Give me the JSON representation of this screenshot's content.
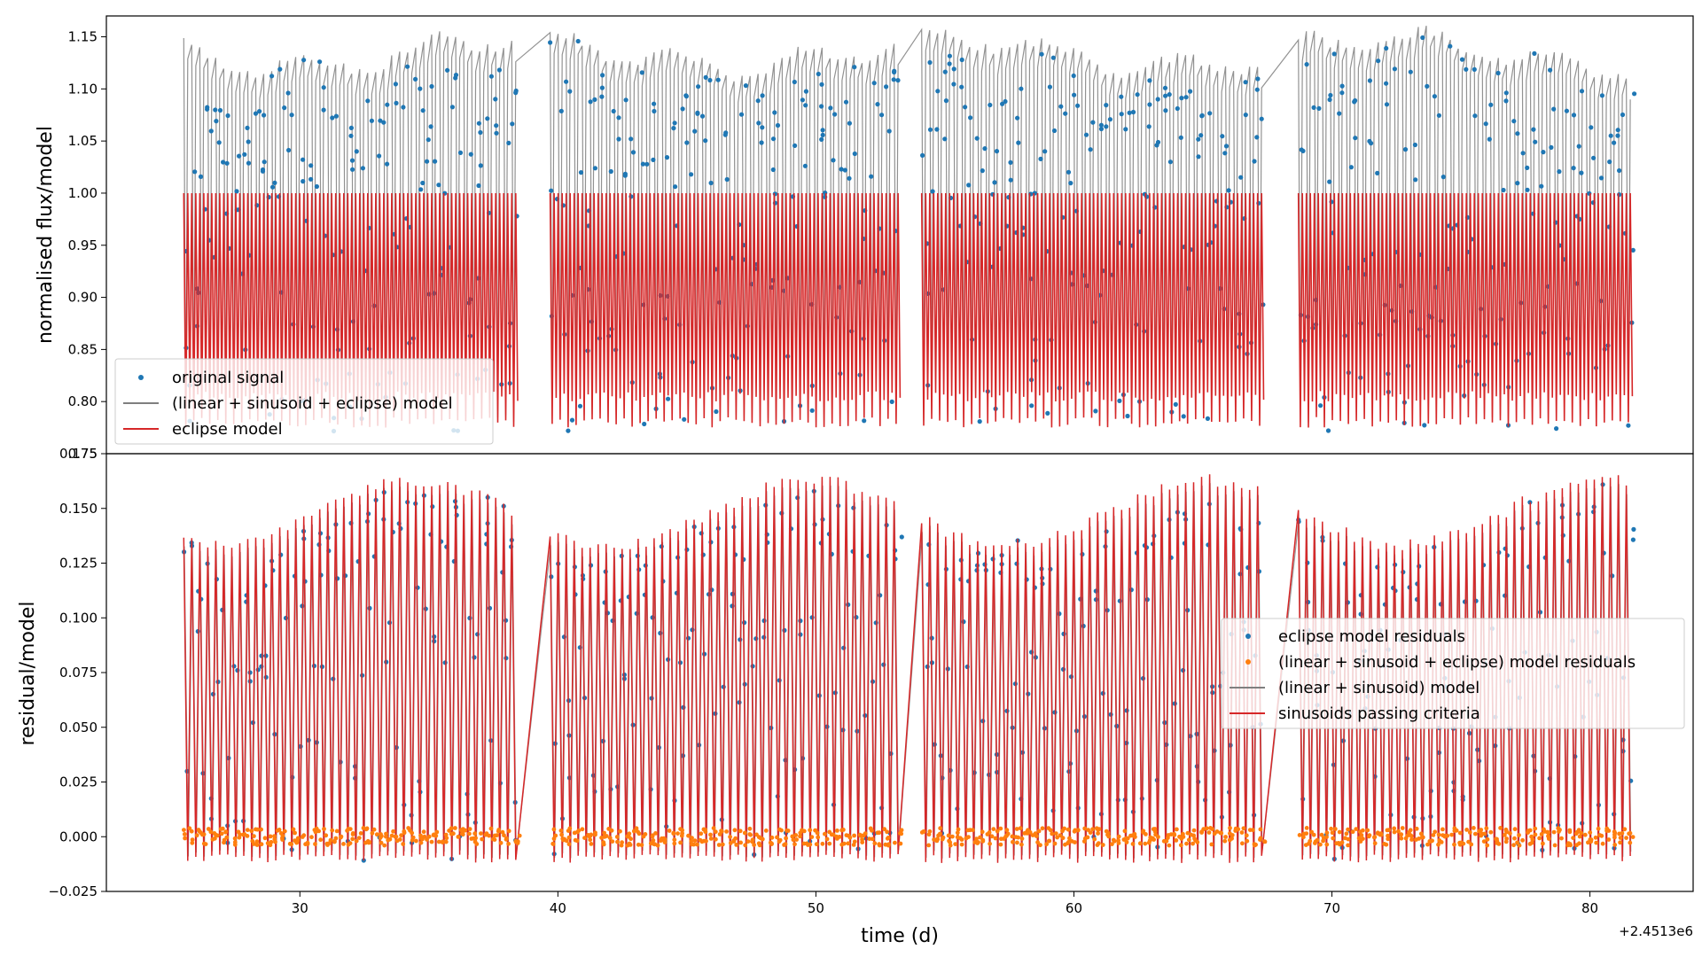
{
  "chart_data": [
    {
      "type": "line",
      "panel": "top",
      "ylabel": "normalised flux/model",
      "ylim": [
        0.75,
        1.17
      ],
      "yticks": [
        "0.75",
        "0.80",
        "0.85",
        "0.90",
        "0.95",
        "1.00",
        "1.05",
        "1.10",
        "1.15"
      ],
      "legend_placement": "lower-left",
      "segments": [
        [
          25.5,
          38.5
        ],
        [
          39.7,
          53.3
        ],
        [
          54.1,
          67.2
        ],
        [
          68.7,
          81.5
        ]
      ],
      "period_days": 0.31,
      "series": [
        {
          "name": "original signal",
          "style": "scatter",
          "color": "#1f77b4",
          "y_range": [
            0.76,
            1.165
          ]
        },
        {
          "name": "(linear + sinusoid + eclipse) model",
          "style": "line",
          "color": "#7f7f7f",
          "y_range": [
            0.77,
            1.16
          ]
        },
        {
          "name": "eclipse model",
          "style": "line",
          "color": "#d62728",
          "y_range": [
            0.77,
            1.0
          ]
        }
      ]
    },
    {
      "type": "line",
      "panel": "bottom",
      "xlabel": "time (d)",
      "ylabel": "residual/model",
      "xlim": [
        22.5,
        84.0
      ],
      "ylim": [
        -0.025,
        0.175
      ],
      "xticks": [
        "30",
        "40",
        "50",
        "60",
        "70",
        "80"
      ],
      "yticks": [
        "−0.025",
        "0.000",
        "0.025",
        "0.050",
        "0.075",
        "0.100",
        "0.125",
        "0.150",
        "0.175"
      ],
      "x_offset_label": "+2.4513e6",
      "legend_placement": "center-right",
      "series": [
        {
          "name": "eclipse model residuals",
          "style": "scatter",
          "color": "#1f77b4",
          "y_range": [
            -0.015,
            0.165
          ]
        },
        {
          "name": "(linear + sinusoid + eclipse) model residuals",
          "style": "scatter",
          "color": "#ff7f0e",
          "y_range": [
            -0.005,
            0.004
          ]
        },
        {
          "name": "(linear + sinusoid) model",
          "style": "line",
          "color": "#7f7f7f",
          "y_range": [
            -0.01,
            0.16
          ]
        },
        {
          "name": "sinusoids passing criteria",
          "style": "line",
          "color": "#d62728",
          "y_range": [
            -0.01,
            0.16
          ]
        }
      ]
    }
  ]
}
